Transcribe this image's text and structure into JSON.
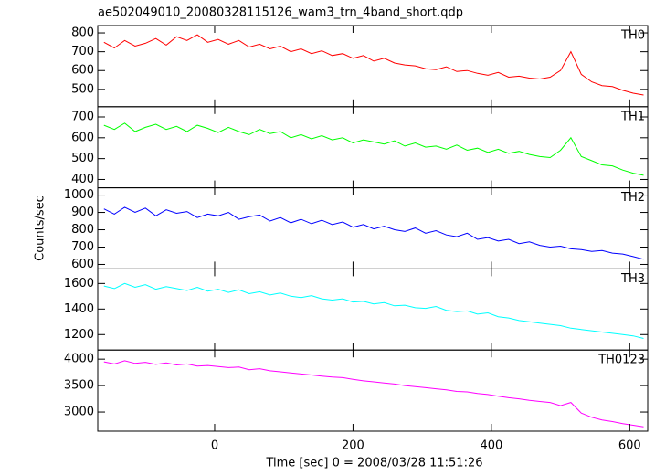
{
  "chart_data": {
    "type": "line",
    "title": "ae502049010_20080328115126_wam3_trn_4band_short.qdp",
    "xlabel": "Time [sec] 0 = 2008/03/28 11:51:26",
    "ylabel": "Counts/sec",
    "xlim": [
      -169,
      626
    ],
    "xticks": [
      0,
      200,
      400,
      600
    ],
    "x": [
      -160,
      -145,
      -130,
      -115,
      -100,
      -85,
      -70,
      -55,
      -40,
      -25,
      -10,
      5,
      20,
      35,
      50,
      65,
      80,
      95,
      110,
      125,
      140,
      155,
      170,
      185,
      200,
      215,
      230,
      245,
      260,
      275,
      290,
      305,
      320,
      335,
      350,
      365,
      380,
      395,
      410,
      425,
      440,
      455,
      470,
      485,
      500,
      515,
      530,
      545,
      560,
      575,
      590,
      605,
      620
    ],
    "series": [
      {
        "name": "TH0",
        "color": "#ff0000",
        "ylim": [
          408,
          839
        ],
        "yticks": [
          500,
          600,
          700,
          800
        ],
        "values": [
          750,
          720,
          760,
          730,
          745,
          770,
          735,
          780,
          760,
          790,
          750,
          765,
          740,
          760,
          725,
          740,
          715,
          730,
          700,
          715,
          690,
          705,
          680,
          690,
          665,
          680,
          650,
          665,
          640,
          630,
          625,
          610,
          605,
          620,
          595,
          600,
          585,
          575,
          590,
          565,
          570,
          560,
          555,
          565,
          600,
          700,
          580,
          540,
          520,
          515,
          495,
          480,
          470
        ]
      },
      {
        "name": "TH1",
        "color": "#00ff00",
        "ylim": [
          360,
          749
        ],
        "yticks": [
          400,
          500,
          600,
          700
        ],
        "values": [
          660,
          640,
          670,
          630,
          650,
          665,
          640,
          655,
          630,
          660,
          645,
          625,
          650,
          630,
          615,
          640,
          620,
          630,
          600,
          615,
          595,
          610,
          590,
          600,
          575,
          590,
          580,
          570,
          585,
          560,
          575,
          555,
          560,
          545,
          565,
          540,
          550,
          530,
          545,
          525,
          535,
          520,
          510,
          505,
          540,
          600,
          510,
          490,
          470,
          465,
          445,
          430,
          420
        ]
      },
      {
        "name": "TH2",
        "color": "#0000ff",
        "ylim": [
          574,
          1042
        ],
        "yticks": [
          600,
          700,
          800,
          900,
          1000
        ],
        "values": [
          920,
          890,
          930,
          900,
          925,
          880,
          915,
          895,
          905,
          870,
          890,
          880,
          900,
          860,
          875,
          885,
          850,
          870,
          840,
          860,
          835,
          855,
          830,
          845,
          815,
          830,
          805,
          820,
          800,
          790,
          810,
          780,
          795,
          770,
          760,
          780,
          745,
          755,
          735,
          745,
          720,
          730,
          710,
          700,
          705,
          690,
          685,
          675,
          680,
          665,
          660,
          645,
          630
        ]
      },
      {
        "name": "TH3",
        "color": "#00ffff",
        "ylim": [
          1079,
          1714
        ],
        "yticks": [
          1200,
          1400,
          1600
        ],
        "values": [
          1580,
          1560,
          1600,
          1570,
          1590,
          1555,
          1575,
          1560,
          1545,
          1570,
          1540,
          1555,
          1530,
          1550,
          1520,
          1535,
          1510,
          1525,
          1500,
          1490,
          1505,
          1480,
          1470,
          1480,
          1455,
          1460,
          1440,
          1450,
          1425,
          1430,
          1410,
          1405,
          1420,
          1390,
          1380,
          1385,
          1360,
          1370,
          1340,
          1330,
          1310,
          1300,
          1290,
          1280,
          1270,
          1250,
          1240,
          1230,
          1220,
          1210,
          1200,
          1190,
          1170
        ]
      },
      {
        "name": "TH0123",
        "color": "#ff00ff",
        "ylim": [
          2638,
          4172
        ],
        "yticks": [
          3000,
          3500,
          4000
        ],
        "values": [
          3950,
          3910,
          3970,
          3920,
          3940,
          3900,
          3930,
          3890,
          3910,
          3870,
          3880,
          3860,
          3840,
          3850,
          3800,
          3820,
          3780,
          3760,
          3740,
          3720,
          3700,
          3680,
          3660,
          3650,
          3620,
          3590,
          3570,
          3550,
          3530,
          3500,
          3480,
          3460,
          3440,
          3420,
          3390,
          3380,
          3350,
          3330,
          3300,
          3270,
          3250,
          3220,
          3200,
          3180,
          3120,
          3180,
          2980,
          2900,
          2850,
          2820,
          2780,
          2750,
          2720
        ]
      }
    ]
  }
}
